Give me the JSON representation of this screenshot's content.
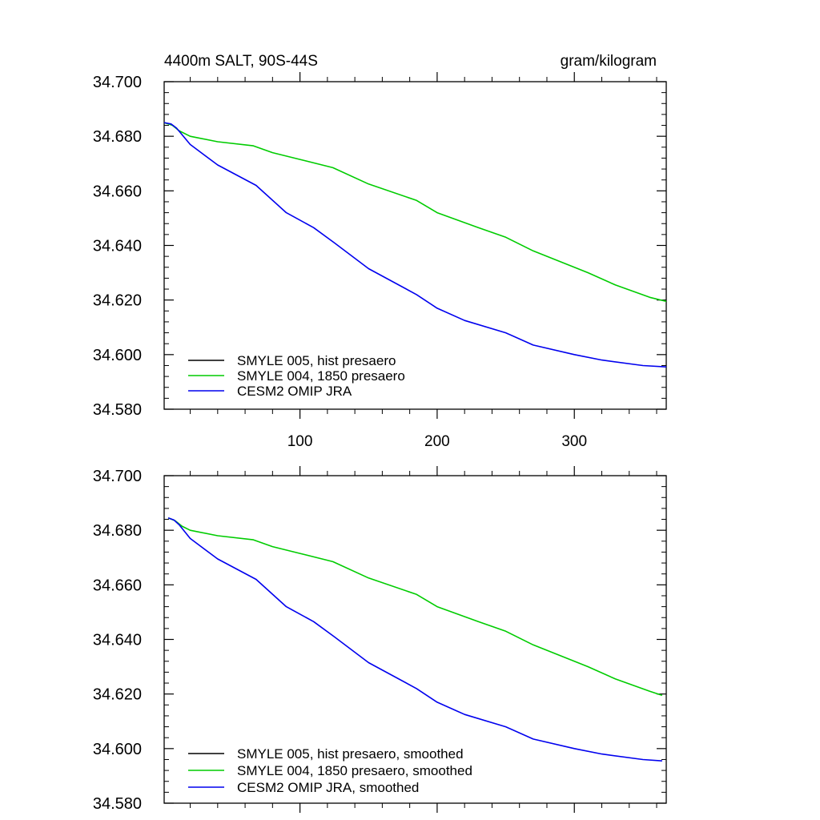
{
  "chart_data": [
    {
      "type": "line",
      "title_left": "4400m SALT, 90S-44S",
      "title_right": "gram/kilogram",
      "xlim": [
        1,
        367
      ],
      "ylim": [
        34.58,
        34.7
      ],
      "yticks": [
        "34.700",
        "34.680",
        "34.660",
        "34.640",
        "34.620",
        "34.600",
        "34.580"
      ],
      "xticks": [
        "100",
        "200",
        "300"
      ],
      "series": [
        {
          "name": "SMYLE 005, hist presaero",
          "color": "#000000",
          "x": [],
          "y": []
        },
        {
          "name": "SMYLE 004, 1850 presaero",
          "color": "#00cc00",
          "x": [
            1,
            7,
            12,
            20,
            40,
            66,
            80,
            100,
            124,
            150,
            185,
            200,
            230,
            250,
            270,
            300,
            310,
            330,
            355,
            367
          ],
          "y": [
            34.685,
            34.684,
            34.682,
            34.68,
            34.678,
            34.6765,
            34.674,
            34.6715,
            34.6685,
            34.6625,
            34.6565,
            34.652,
            34.6465,
            34.643,
            34.638,
            34.632,
            34.63,
            34.6255,
            34.621,
            34.6195
          ]
        },
        {
          "name": "CESM2 OMIP JRA",
          "color": "#0000ee",
          "x": [
            1,
            6,
            10,
            20,
            40,
            68,
            90,
            110,
            125,
            150,
            185,
            200,
            220,
            250,
            270,
            300,
            320,
            350,
            367
          ],
          "y": [
            34.685,
            34.6845,
            34.683,
            34.677,
            34.6695,
            34.662,
            34.652,
            34.6465,
            34.641,
            34.6315,
            34.622,
            34.617,
            34.6125,
            34.608,
            34.6035,
            34.6,
            34.598,
            34.596,
            34.5955
          ]
        }
      ]
    },
    {
      "type": "line",
      "title_left": "",
      "title_right": "",
      "xlim": [
        1,
        367
      ],
      "ylim": [
        34.58,
        34.7
      ],
      "yticks": [
        "34.700",
        "34.680",
        "34.660",
        "34.640",
        "34.620",
        "34.600",
        "34.580"
      ],
      "xticks": [],
      "series": [
        {
          "name": "SMYLE 005, hist presaero, smoothed",
          "color": "#000000",
          "x": [],
          "y": []
        },
        {
          "name": "SMYLE 004, 1850 presaero, smoothed",
          "color": "#00cc00",
          "x": [
            4,
            9,
            14,
            20,
            40,
            66,
            80,
            100,
            124,
            150,
            185,
            200,
            230,
            250,
            270,
            300,
            310,
            330,
            355,
            364
          ],
          "y": [
            34.6845,
            34.6835,
            34.6815,
            34.68,
            34.678,
            34.6765,
            34.674,
            34.6715,
            34.6685,
            34.6625,
            34.6565,
            34.652,
            34.6465,
            34.643,
            34.638,
            34.632,
            34.63,
            34.6255,
            34.621,
            34.6195
          ]
        },
        {
          "name": "CESM2 OMIP JRA, smoothed",
          "color": "#0000ee",
          "x": [
            4,
            8,
            12,
            20,
            40,
            68,
            90,
            110,
            125,
            150,
            185,
            200,
            220,
            250,
            270,
            300,
            320,
            350,
            364
          ],
          "y": [
            34.6845,
            34.6838,
            34.682,
            34.677,
            34.6695,
            34.662,
            34.652,
            34.6465,
            34.641,
            34.6315,
            34.622,
            34.617,
            34.6125,
            34.608,
            34.6035,
            34.6,
            34.598,
            34.596,
            34.5955
          ]
        }
      ]
    }
  ]
}
